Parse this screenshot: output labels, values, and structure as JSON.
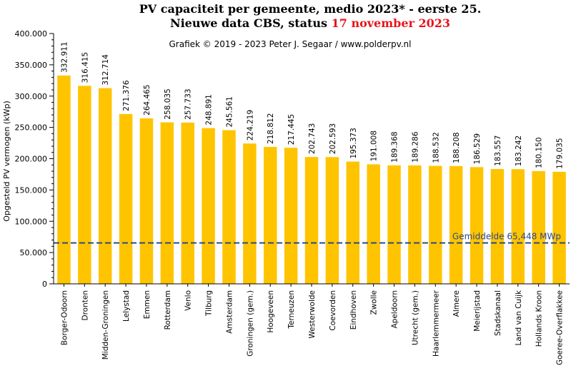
{
  "header": {
    "title_line1": "PV capaciteit  per gemeente, medio  2023* - eerste 25.",
    "title_line2_prefix": "Nieuwe data CBS, status ",
    "title_line2_date": "17 november 2023",
    "credit": "Grafiek  © 2019 - 2023  Peter J. Segaar / www.polderpv.nl"
  },
  "chart_data": {
    "type": "bar",
    "ylabel": "Opgesteld PV vermogen (kWp)",
    "ylim": [
      0,
      400000
    ],
    "yticks": [
      0,
      50000,
      100000,
      150000,
      200000,
      250000,
      300000,
      350000,
      400000
    ],
    "ytick_labels": [
      "0",
      "50.000",
      "100.000",
      "150.000",
      "200.000",
      "250.000",
      "300.000",
      "350.000",
      "400.000"
    ],
    "categories": [
      "Borger-Odoorn",
      "Dronten",
      "Midden-Groningen",
      "Lelystad",
      "Emmen",
      "Rotterdam",
      "Venlo",
      "Tilburg",
      "Amsterdam",
      "Groningen (gem.)",
      "Hoogeveen",
      "Terneuzen",
      "Westerwolde",
      "Coevorden",
      "Eindhoven",
      "Zwolle",
      "Apeldoorn",
      "Utrecht (gem.)",
      "Haarlemmermeer",
      "Almere",
      "Meierijstad",
      "Stadskanaal",
      "Land van Cuijk",
      "Hollands Kroon",
      "Goeree-Overflakkee"
    ],
    "values": [
      332911,
      316415,
      312714,
      271376,
      264465,
      258035,
      257733,
      248891,
      245561,
      224219,
      218812,
      217445,
      202743,
      202593,
      195373,
      191008,
      189368,
      189286,
      188532,
      188208,
      186529,
      183557,
      183242,
      180150,
      179035
    ],
    "value_labels": [
      "332.911",
      "316.415",
      "312.714",
      "271.376",
      "264.465",
      "258.035",
      "257.733",
      "248.891",
      "245.561",
      "224.219",
      "218.812",
      "217.445",
      "202.743",
      "202.593",
      "195.373",
      "191.008",
      "189.368",
      "189.286",
      "188.532",
      "188.208",
      "186.529",
      "183.557",
      "183.242",
      "180.150",
      "179.035"
    ],
    "average": {
      "label": "Gemiddelde   65,448  MWp",
      "value": 65448
    },
    "colors": {
      "bar": "#ffc400",
      "average_line": "#2a4a8a",
      "title_highlight": "#e8141b"
    }
  }
}
